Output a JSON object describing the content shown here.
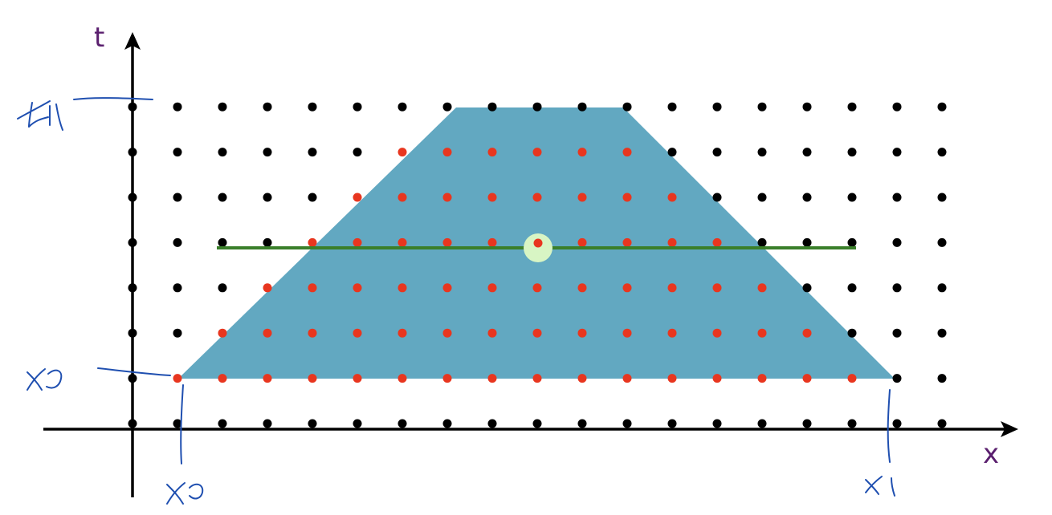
{
  "axes": {
    "t_label": "t",
    "x_label": "x"
  },
  "colors": {
    "axis_label": "#5a1f6e",
    "axis": "#000000",
    "region_fill": "#62a8c1",
    "lattice_dot": "#000000",
    "region_dot": "#e8361f",
    "cut_line": "#3a7f2a",
    "highlight_halo": "#d8f5c4",
    "handwriting": "#1f4fb0"
  },
  "lattice": {
    "columns": 19,
    "rows": 8,
    "region": {
      "rows_from_bottom": [
        {
          "row": 1,
          "red_cols": [
            1,
            2,
            3,
            4,
            5,
            6,
            7,
            8,
            9,
            10,
            11,
            12,
            13,
            14,
            15,
            16
          ]
        },
        {
          "row": 2,
          "red_cols": [
            2,
            3,
            4,
            5,
            6,
            7,
            8,
            9,
            10,
            11,
            12,
            13,
            14,
            15
          ]
        },
        {
          "row": 3,
          "red_cols": [
            3,
            4,
            5,
            6,
            7,
            8,
            9,
            10,
            11,
            12,
            13,
            14
          ]
        },
        {
          "row": 4,
          "red_cols": [
            4,
            5,
            6,
            7,
            8,
            9,
            10,
            11,
            12,
            13
          ]
        },
        {
          "row": 5,
          "red_cols": [
            5,
            6,
            7,
            8,
            9,
            10,
            11,
            12
          ]
        },
        {
          "row": 6,
          "red_cols": [
            6,
            7,
            8,
            9,
            10,
            11
          ]
        },
        {
          "row": 7,
          "red_cols": []
        }
      ],
      "highlight": {
        "col": 9,
        "row": 4
      }
    }
  },
  "handwritten": {
    "t1": "t1",
    "t0": "t0",
    "x0": "x0",
    "x1": "x1"
  }
}
